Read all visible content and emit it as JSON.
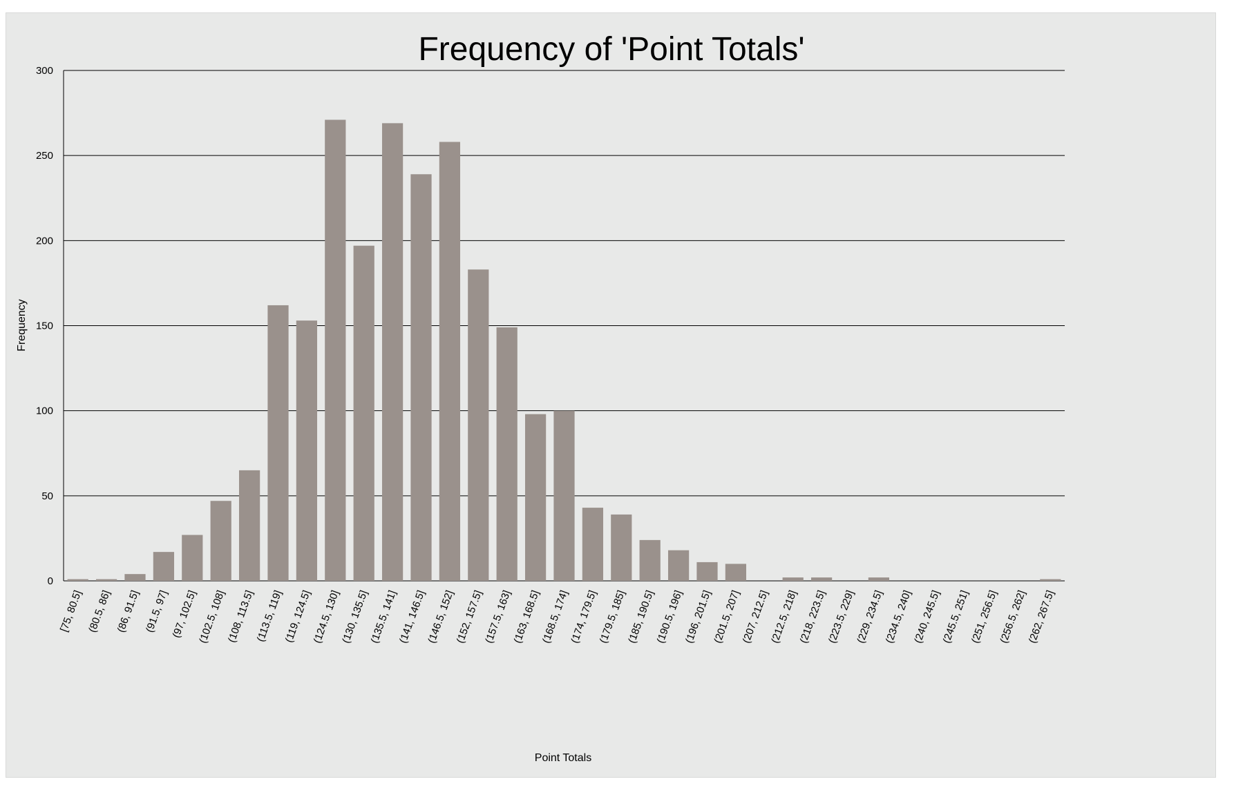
{
  "chart_data": {
    "type": "bar",
    "title": "Frequency of 'Point Totals'",
    "xlabel": "Point Totals",
    "ylabel": "Frequency",
    "ylim": [
      0,
      300
    ],
    "yticks": [
      0,
      50,
      100,
      150,
      200,
      250,
      300
    ],
    "grid": "horizontal",
    "bar_color": "#9a918c",
    "categories": [
      "[75, 80.5]",
      "(80.5, 86]",
      "(86, 91.5]",
      "(91.5, 97]",
      "(97, 102.5]",
      "(102.5, 108]",
      "(108, 113.5]",
      "(113.5, 119]",
      "(119, 124.5]",
      "(124.5, 130]",
      "(130, 135.5]",
      "(135.5, 141]",
      "(141, 146.5]",
      "(146.5, 152]",
      "(152, 157.5]",
      "(157.5, 163]",
      "(163, 168.5]",
      "(168.5, 174]",
      "(174, 179.5]",
      "(179.5, 185]",
      "(185, 190.5]",
      "(190.5, 196]",
      "(196, 201.5]",
      "(201.5, 207]",
      "(207, 212.5]",
      "(212.5, 218]",
      "(218, 223.5]",
      "(223.5, 229]",
      "(229, 234.5]",
      "(234.5, 240]",
      "(240, 245.5]",
      "(245.5, 251]",
      "(251, 256.5]",
      "(256.5, 262]",
      "(262, 267.5]"
    ],
    "values": [
      1,
      1,
      4,
      17,
      27,
      47,
      65,
      162,
      153,
      271,
      197,
      269,
      239,
      258,
      183,
      149,
      98,
      100,
      43,
      39,
      24,
      18,
      11,
      10,
      0,
      2,
      2,
      0,
      2,
      0,
      0,
      0,
      0,
      0,
      1
    ]
  }
}
